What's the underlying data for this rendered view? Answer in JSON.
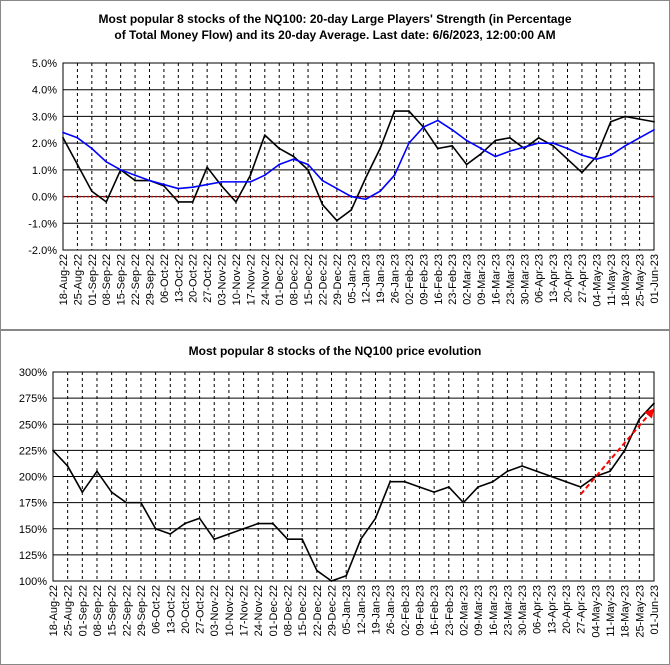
{
  "charts": [
    {
      "title_line1": "Most popular 8 stocks of the NQ100: 20-day Large Players' Strength (in Percentage",
      "title_line2": "of Total Money Flow) and its 20-day Average. Last date: 6/6/2023, 12:00:00 AM"
    },
    {
      "title": "Most popular 8 stocks of the NQ100 price evolution"
    }
  ],
  "chart_data": [
    {
      "type": "line",
      "title": "Most popular 8 stocks of the NQ100: 20-day Large Players' Strength (in Percentage of Total Money Flow) and its 20-day Average. Last date: 6/6/2023, 12:00:00 AM",
      "xlabel": "",
      "ylabel": "",
      "ylim": [
        -2,
        5
      ],
      "yticks": [
        -2,
        -1,
        0,
        1,
        2,
        3,
        4,
        5
      ],
      "ytick_labels": [
        "-2.0%",
        "-1.0%",
        "0.0%",
        "1.0%",
        "2.0%",
        "3.0%",
        "4.0%",
        "5.0%"
      ],
      "categories": [
        "18-Aug-22",
        "25-Aug-22",
        "01-Sep-22",
        "08-Sep-22",
        "15-Sep-22",
        "22-Sep-22",
        "29-Sep-22",
        "06-Oct-22",
        "13-Oct-22",
        "20-Oct-22",
        "27-Oct-22",
        "03-Nov-22",
        "10-Nov-22",
        "17-Nov-22",
        "24-Nov-22",
        "01-Dec-22",
        "08-Dec-22",
        "15-Dec-22",
        "22-Dec-22",
        "29-Dec-22",
        "05-Jan-23",
        "12-Jan-23",
        "19-Jan-23",
        "26-Jan-23",
        "02-Feb-23",
        "09-Feb-23",
        "16-Feb-23",
        "23-Feb-23",
        "02-Mar-23",
        "09-Mar-23",
        "16-Mar-23",
        "23-Mar-23",
        "30-Mar-23",
        "06-Apr-23",
        "13-Apr-23",
        "20-Apr-23",
        "27-Apr-23",
        "04-May-23",
        "11-May-23",
        "18-May-23",
        "25-May-23",
        "01-Jun-23"
      ],
      "x_label_offset": 0,
      "zero_line": true,
      "grid": true,
      "series": [
        {
          "name": "",
          "color": "#000000",
          "values": [
            2.2,
            1.2,
            0.2,
            -0.2,
            1.0,
            0.6,
            0.6,
            0.4,
            -0.2,
            -0.2,
            1.1,
            0.4,
            -0.2,
            0.8,
            2.3,
            1.8,
            1.5,
            1.0,
            -0.3,
            -0.9,
            -0.5,
            0.7,
            1.8,
            3.2,
            3.2,
            2.6,
            1.8,
            1.9,
            1.2,
            1.6,
            2.1,
            2.2,
            1.8,
            2.2,
            1.9,
            1.4,
            0.9,
            1.5,
            2.8,
            3.0,
            2.9,
            2.8
          ]
        },
        {
          "name": "",
          "color": "#0000ff",
          "values": [
            2.4,
            2.2,
            1.8,
            1.3,
            1.0,
            0.8,
            0.6,
            0.45,
            0.3,
            0.35,
            0.45,
            0.55,
            0.55,
            0.55,
            0.8,
            1.2,
            1.4,
            1.2,
            0.6,
            0.3,
            0.0,
            -0.1,
            0.2,
            0.8,
            2.0,
            2.6,
            2.85,
            2.5,
            2.1,
            1.8,
            1.5,
            1.7,
            1.85,
            2.0,
            2.0,
            1.8,
            1.55,
            1.4,
            1.55,
            1.9,
            2.2,
            2.5
          ]
        }
      ]
    },
    {
      "type": "line",
      "title": "Most popular 8 stocks of the NQ100 price evolution",
      "xlabel": "",
      "ylabel": "",
      "ylim": [
        1.0,
        3.0
      ],
      "yticks": [
        1.0,
        1.25,
        1.5,
        1.75,
        2.0,
        2.25,
        2.5,
        2.75,
        3.0
      ],
      "ytick_labels": [
        "100%",
        "125%",
        "150%",
        "175%",
        "200%",
        "225%",
        "250%",
        "275%",
        "300%"
      ],
      "categories": [
        "18-Aug-22",
        "25-Aug-22",
        "01-Sep-22",
        "08-Sep-22",
        "15-Sep-22",
        "22-Sep-22",
        "29-Sep-22",
        "06-Oct-22",
        "13-Oct-22",
        "20-Oct-22",
        "27-Oct-22",
        "03-Nov-22",
        "10-Nov-22",
        "17-Nov-22",
        "24-Nov-22",
        "01-Dec-22",
        "08-Dec-22",
        "15-Dec-22",
        "22-Dec-22",
        "29-Dec-22",
        "05-Jan-23",
        "12-Jan-23",
        "19-Jan-23",
        "26-Jan-23",
        "02-Feb-23",
        "09-Feb-23",
        "16-Feb-23",
        "23-Feb-23",
        "02-Mar-23",
        "09-Mar-23",
        "16-Mar-23",
        "23-Mar-23",
        "30-Mar-23",
        "06-Apr-23",
        "13-Apr-23",
        "20-Apr-23",
        "27-Apr-23",
        "04-May-23",
        "11-May-23",
        "18-May-23",
        "25-May-23",
        "01-Jun-23"
      ],
      "zero_line": false,
      "grid": true,
      "series": [
        {
          "name": "",
          "color": "#000000",
          "values": [
            2.25,
            2.1,
            1.85,
            2.05,
            1.85,
            1.75,
            1.75,
            1.5,
            1.45,
            1.55,
            1.6,
            1.4,
            1.45,
            1.5,
            1.55,
            1.55,
            1.4,
            1.4,
            1.1,
            1.0,
            1.05,
            1.4,
            1.6,
            1.95,
            1.95,
            1.9,
            1.85,
            1.9,
            1.75,
            1.9,
            1.95,
            2.05,
            2.1,
            2.05,
            2.0,
            1.95,
            1.9,
            2.0,
            2.05,
            2.25,
            2.55,
            2.7
          ]
        }
      ],
      "trend_arrow": {
        "color": "#ff0000",
        "from": {
          "x": "27-Apr-23",
          "y": 1.83
        },
        "to": {
          "x": "01-Jun-23",
          "y": 2.65
        }
      }
    }
  ]
}
